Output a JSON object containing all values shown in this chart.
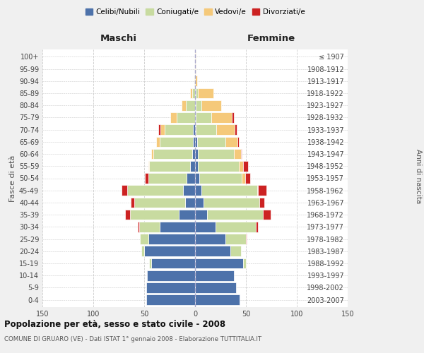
{
  "age_groups": [
    "0-4",
    "5-9",
    "10-14",
    "15-19",
    "20-24",
    "25-29",
    "30-34",
    "35-39",
    "40-44",
    "45-49",
    "50-54",
    "55-59",
    "60-64",
    "65-69",
    "70-74",
    "75-79",
    "80-84",
    "85-89",
    "90-94",
    "95-99",
    "100+"
  ],
  "birth_years": [
    "2003-2007",
    "1998-2002",
    "1993-1997",
    "1988-1992",
    "1983-1987",
    "1978-1982",
    "1973-1977",
    "1968-1972",
    "1963-1967",
    "1958-1962",
    "1953-1957",
    "1948-1952",
    "1943-1947",
    "1938-1942",
    "1933-1937",
    "1928-1932",
    "1923-1927",
    "1918-1922",
    "1913-1917",
    "1908-1912",
    "≤ 1907"
  ],
  "male": {
    "celibi": [
      48,
      48,
      47,
      43,
      50,
      46,
      35,
      16,
      10,
      12,
      8,
      5,
      3,
      2,
      2,
      0,
      0,
      0,
      0,
      0,
      0
    ],
    "coniugati": [
      0,
      0,
      0,
      2,
      3,
      8,
      20,
      48,
      50,
      55,
      38,
      40,
      38,
      33,
      28,
      18,
      9,
      3,
      1,
      0,
      0
    ],
    "vedovi": [
      0,
      0,
      0,
      0,
      0,
      0,
      0,
      0,
      0,
      0,
      0,
      1,
      2,
      3,
      4,
      6,
      4,
      2,
      0,
      0,
      0
    ],
    "divorziati": [
      0,
      0,
      0,
      0,
      0,
      0,
      1,
      5,
      3,
      5,
      3,
      0,
      0,
      0,
      2,
      0,
      0,
      0,
      0,
      0,
      0
    ]
  },
  "female": {
    "celibi": [
      44,
      40,
      38,
      47,
      35,
      30,
      20,
      12,
      8,
      6,
      4,
      3,
      3,
      2,
      1,
      1,
      1,
      1,
      0,
      0,
      0
    ],
    "coniugati": [
      0,
      0,
      0,
      3,
      10,
      20,
      40,
      55,
      55,
      55,
      42,
      40,
      35,
      28,
      20,
      15,
      5,
      2,
      0,
      0,
      0
    ],
    "vedovi": [
      0,
      0,
      0,
      0,
      0,
      0,
      0,
      0,
      0,
      1,
      3,
      4,
      7,
      12,
      18,
      20,
      20,
      15,
      2,
      1,
      1
    ],
    "divorziati": [
      0,
      0,
      0,
      0,
      0,
      1,
      2,
      7,
      5,
      8,
      5,
      5,
      1,
      1,
      2,
      2,
      0,
      0,
      0,
      0,
      0
    ]
  },
  "colors": {
    "celibi": "#4d72aa",
    "coniugati": "#c8dba0",
    "vedovi": "#f5c97a",
    "divorziati": "#cc2222"
  },
  "title": "Popolazione per età, sesso e stato civile - 2008",
  "subtitle": "COMUNE DI GRUARO (VE) - Dati ISTAT 1° gennaio 2008 - Elaborazione TUTTITALIA.IT",
  "xlabel_left": "Maschi",
  "xlabel_right": "Femmine",
  "ylabel_left": "Fasce di età",
  "ylabel_right": "Anni di nascita",
  "xlim": 150,
  "bg_color": "#f0f0f0",
  "plot_bg_color": "#ffffff",
  "grid_color": "#cccccc",
  "legend_labels": [
    "Celibi/Nubili",
    "Coniugati/e",
    "Vedovi/e",
    "Divorziati/e"
  ]
}
